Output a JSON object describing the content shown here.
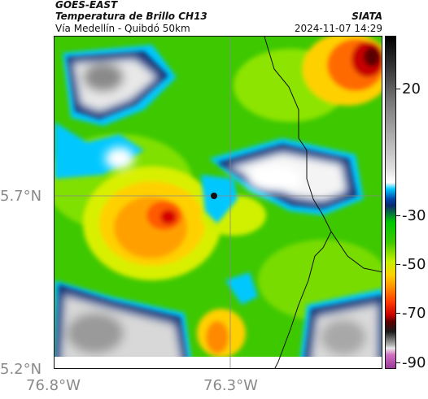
{
  "header": {
    "satellite": "GOES-EAST",
    "product": "Temperatura de Brillo CH13",
    "route": "Vía Medellín - Quibdó 50km",
    "agency": "SIATA",
    "timestamp": "2024-11-07 14:29"
  },
  "axes": {
    "latitude_labels": [
      "5.7°N",
      "5.2°N"
    ],
    "longitude_labels": [
      "76.8°W",
      "76.3°W"
    ]
  },
  "colorbar": {
    "tick_labels": [
      "20",
      "-30",
      "-50",
      "-70",
      "-90"
    ]
  },
  "map": {
    "marker_icon": "location-marker",
    "features": [
      "cloud-top-temperature-field",
      "country-border-lines",
      "graticule-lines"
    ]
  },
  "colors": {
    "palette": [
      "#c84aa8",
      "#8a8a8a",
      "#1a1a1a",
      "#7a0000",
      "#d40000",
      "#ff6a00",
      "#ffd000",
      "#c8f000",
      "#3ec800",
      "#00d0ff",
      "#004080",
      "#e8e8e8",
      "#ffffff"
    ]
  }
}
